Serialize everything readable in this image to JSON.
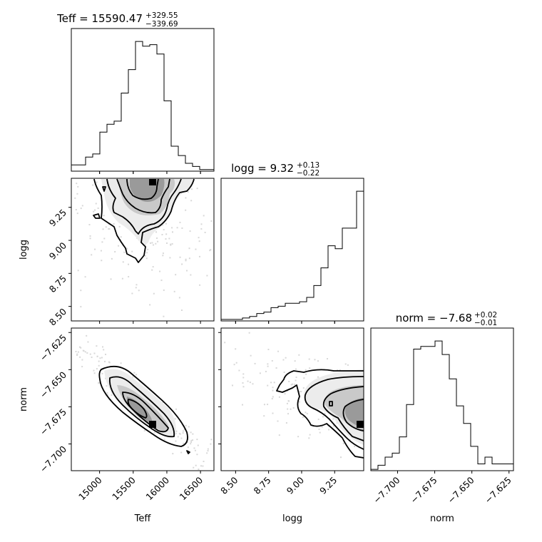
{
  "chart_data": {
    "type": "corner",
    "parameters": [
      "Teff",
      "logg",
      "norm"
    ],
    "titles": [
      {
        "param": "Teff",
        "prefix": "Teff = 15590.47",
        "plus": "+329.55",
        "minus": "−339.69"
      },
      {
        "param": "logg",
        "prefix": "logg = 9.32",
        "plus": "+0.13",
        "minus": "−0.22"
      },
      {
        "param": "norm",
        "prefix": "norm = −7.68",
        "plus": "+0.02",
        "minus": "−0.01"
      }
    ],
    "axes": {
      "Teff": {
        "range": [
          14580,
          16700
        ],
        "ticks": [
          15000,
          15500,
          16000,
          16500
        ],
        "tick_labels": [
          "15000",
          "15500",
          "16000",
          "16500"
        ],
        "label": "Teff"
      },
      "logg": {
        "range": [
          8.39,
          9.47
        ],
        "ticks": [
          8.5,
          8.75,
          9.0,
          9.25
        ],
        "tick_labels": [
          "8.50",
          "8.75",
          "9.00",
          "9.25"
        ],
        "label": "logg"
      },
      "norm": {
        "range": [
          -7.718,
          -7.622
        ],
        "ticks": [
          -7.7,
          -7.675,
          -7.65,
          -7.625
        ],
        "tick_labels": [
          "−7.700",
          "−7.675",
          "−7.650",
          "−7.625"
        ],
        "label": "norm"
      }
    },
    "hist_Teff": {
      "edges": [
        14580,
        14686,
        14792,
        14898,
        15004,
        15110,
        15216,
        15322,
        15428,
        15534,
        15640,
        15746,
        15852,
        15958,
        16064,
        16170,
        16276,
        16382,
        16488,
        16594,
        16700
      ],
      "counts": [
        4,
        4,
        9,
        11,
        25,
        30,
        32,
        50,
        65,
        83,
        80,
        81,
        75,
        45,
        16,
        10,
        5,
        3,
        1,
        1
      ]
    },
    "hist_logg": {
      "edges": [
        8.39,
        8.444,
        8.498,
        8.552,
        8.606,
        8.66,
        8.714,
        8.768,
        8.822,
        8.876,
        8.93,
        8.984,
        9.038,
        9.092,
        9.146,
        9.2,
        9.254,
        9.308,
        9.362,
        9.416,
        9.47
      ],
      "counts": [
        1,
        1,
        1,
        2,
        3,
        5,
        6,
        9,
        10,
        12,
        12,
        13,
        16,
        24,
        36,
        51,
        49,
        63,
        63,
        88
      ]
    },
    "hist_norm": {
      "edges": [
        -7.718,
        -7.7132,
        -7.7084,
        -7.7036,
        -7.6988,
        -7.694,
        -7.6892,
        -7.6844,
        -7.6796,
        -7.6748,
        -7.67,
        -7.6652,
        -7.6604,
        -7.6556,
        -7.6508,
        -7.646,
        -7.6412,
        -7.6364,
        -7.6316,
        -7.6268,
        -7.622
      ],
      "counts": [
        1,
        4,
        10,
        13,
        25,
        49,
        90,
        92,
        92,
        96,
        86,
        68,
        48,
        35,
        18,
        5,
        10,
        5,
        5,
        5
      ]
    },
    "pair_2d": [
      {
        "x": "Teff",
        "y": "logg",
        "shape": "contours with greyscale density, peak near Teff 15800, logg 9.45"
      },
      {
        "x": "Teff",
        "y": "norm",
        "shape": "anti-correlated elongated contours, peak near Teff 15800, norm -7.69"
      },
      {
        "x": "logg",
        "y": "norm",
        "shape": "contours concentrated at high logg, peak near logg 9.46, norm -7.69"
      }
    ]
  }
}
